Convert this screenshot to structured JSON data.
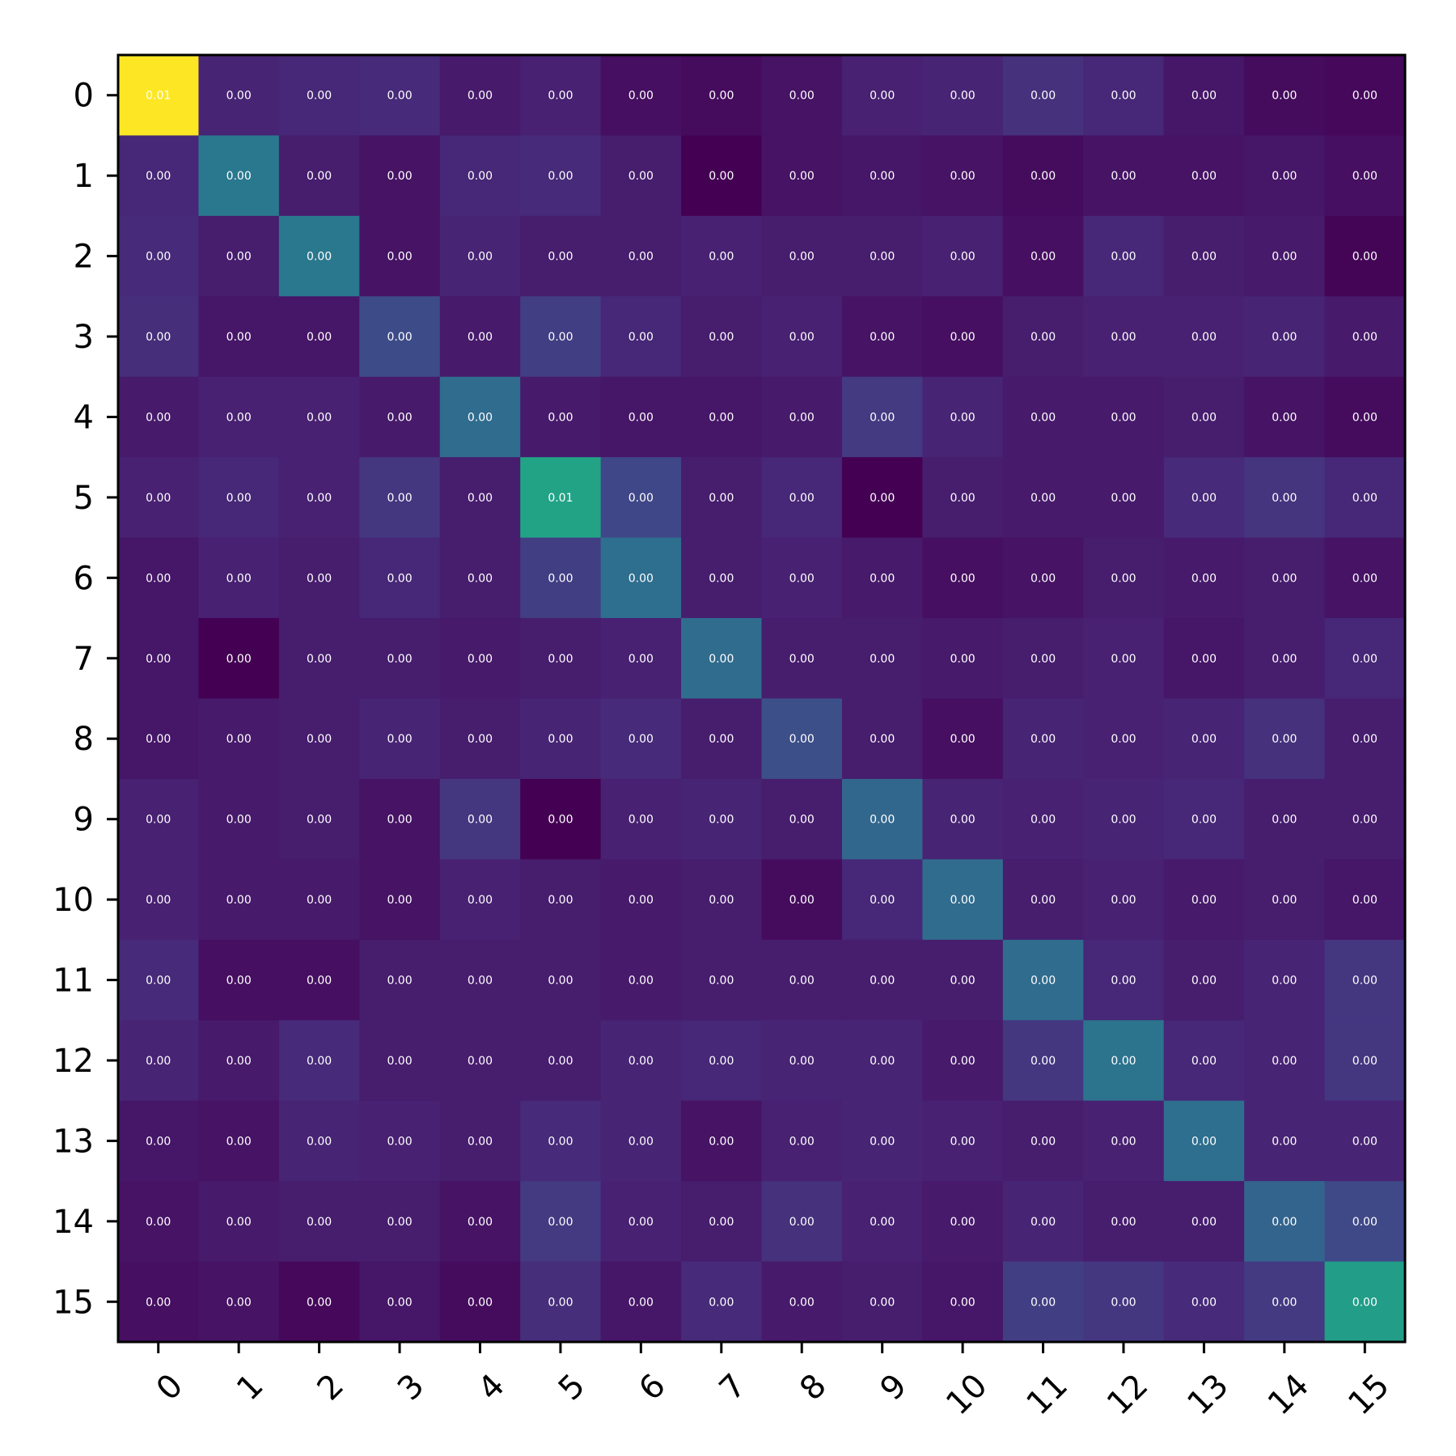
{
  "chart_data": {
    "type": "heatmap",
    "title": "",
    "xlabel": "",
    "ylabel": "",
    "x_ticks": [
      "0",
      "1",
      "2",
      "3",
      "4",
      "5",
      "6",
      "7",
      "8",
      "9",
      "10",
      "11",
      "12",
      "13",
      "14",
      "15"
    ],
    "y_ticks": [
      "0",
      "1",
      "2",
      "3",
      "4",
      "5",
      "6",
      "7",
      "8",
      "9",
      "10",
      "11",
      "12",
      "13",
      "14",
      "15"
    ],
    "colormap": "viridis",
    "value_range": [
      0,
      1
    ],
    "cell_labels": [
      [
        "0.01",
        "0.00",
        "0.00",
        "0.00",
        "0.00",
        "0.00",
        "0.00",
        "0.00",
        "0.00",
        "0.00",
        "0.00",
        "0.00",
        "0.00",
        "0.00",
        "0.00",
        "0.00"
      ],
      [
        "0.00",
        "0.00",
        "0.00",
        "0.00",
        "0.00",
        "0.00",
        "0.00",
        "0.00",
        "0.00",
        "0.00",
        "0.00",
        "0.00",
        "0.00",
        "0.00",
        "0.00",
        "0.00"
      ],
      [
        "0.00",
        "0.00",
        "0.00",
        "0.00",
        "0.00",
        "0.00",
        "0.00",
        "0.00",
        "0.00",
        "0.00",
        "0.00",
        "0.00",
        "0.00",
        "0.00",
        "0.00",
        "0.00"
      ],
      [
        "0.00",
        "0.00",
        "0.00",
        "0.00",
        "0.00",
        "0.00",
        "0.00",
        "0.00",
        "0.00",
        "0.00",
        "0.00",
        "0.00",
        "0.00",
        "0.00",
        "0.00",
        "0.00"
      ],
      [
        "0.00",
        "0.00",
        "0.00",
        "0.00",
        "0.00",
        "0.00",
        "0.00",
        "0.00",
        "0.00",
        "0.00",
        "0.00",
        "0.00",
        "0.00",
        "0.00",
        "0.00",
        "0.00"
      ],
      [
        "0.00",
        "0.00",
        "0.00",
        "0.00",
        "0.00",
        "0.01",
        "0.00",
        "0.00",
        "0.00",
        "0.00",
        "0.00",
        "0.00",
        "0.00",
        "0.00",
        "0.00",
        "0.00"
      ],
      [
        "0.00",
        "0.00",
        "0.00",
        "0.00",
        "0.00",
        "0.00",
        "0.00",
        "0.00",
        "0.00",
        "0.00",
        "0.00",
        "0.00",
        "0.00",
        "0.00",
        "0.00",
        "0.00"
      ],
      [
        "0.00",
        "0.00",
        "0.00",
        "0.00",
        "0.00",
        "0.00",
        "0.00",
        "0.00",
        "0.00",
        "0.00",
        "0.00",
        "0.00",
        "0.00",
        "0.00",
        "0.00",
        "0.00"
      ],
      [
        "0.00",
        "0.00",
        "0.00",
        "0.00",
        "0.00",
        "0.00",
        "0.00",
        "0.00",
        "0.00",
        "0.00",
        "0.00",
        "0.00",
        "0.00",
        "0.00",
        "0.00",
        "0.00"
      ],
      [
        "0.00",
        "0.00",
        "0.00",
        "0.00",
        "0.00",
        "0.00",
        "0.00",
        "0.00",
        "0.00",
        "0.00",
        "0.00",
        "0.00",
        "0.00",
        "0.00",
        "0.00",
        "0.00"
      ],
      [
        "0.00",
        "0.00",
        "0.00",
        "0.00",
        "0.00",
        "0.00",
        "0.00",
        "0.00",
        "0.00",
        "0.00",
        "0.00",
        "0.00",
        "0.00",
        "0.00",
        "0.00",
        "0.00"
      ],
      [
        "0.00",
        "0.00",
        "0.00",
        "0.00",
        "0.00",
        "0.00",
        "0.00",
        "0.00",
        "0.00",
        "0.00",
        "0.00",
        "0.00",
        "0.00",
        "0.00",
        "0.00",
        "0.00"
      ],
      [
        "0.00",
        "0.00",
        "0.00",
        "0.00",
        "0.00",
        "0.00",
        "0.00",
        "0.00",
        "0.00",
        "0.00",
        "0.00",
        "0.00",
        "0.00",
        "0.00",
        "0.00",
        "0.00"
      ],
      [
        "0.00",
        "0.00",
        "0.00",
        "0.00",
        "0.00",
        "0.00",
        "0.00",
        "0.00",
        "0.00",
        "0.00",
        "0.00",
        "0.00",
        "0.00",
        "0.00",
        "0.00",
        "0.00"
      ],
      [
        "0.00",
        "0.00",
        "0.00",
        "0.00",
        "0.00",
        "0.00",
        "0.00",
        "0.00",
        "0.00",
        "0.00",
        "0.00",
        "0.00",
        "0.00",
        "0.00",
        "0.00",
        "0.00"
      ],
      [
        "0.00",
        "0.00",
        "0.00",
        "0.00",
        "0.00",
        "0.00",
        "0.00",
        "0.00",
        "0.00",
        "0.00",
        "0.00",
        "0.00",
        "0.00",
        "0.00",
        "0.00",
        "0.00"
      ]
    ],
    "intensity": [
      [
        1.0,
        0.1,
        0.11,
        0.12,
        0.07,
        0.09,
        0.04,
        0.03,
        0.05,
        0.09,
        0.1,
        0.14,
        0.11,
        0.06,
        0.03,
        0.02
      ],
      [
        0.11,
        0.4,
        0.08,
        0.05,
        0.11,
        0.12,
        0.08,
        0.0,
        0.05,
        0.06,
        0.05,
        0.03,
        0.05,
        0.05,
        0.06,
        0.04
      ],
      [
        0.12,
        0.08,
        0.4,
        0.05,
        0.1,
        0.08,
        0.08,
        0.09,
        0.08,
        0.08,
        0.09,
        0.04,
        0.11,
        0.08,
        0.07,
        0.01
      ],
      [
        0.13,
        0.06,
        0.06,
        0.23,
        0.07,
        0.18,
        0.11,
        0.08,
        0.09,
        0.05,
        0.04,
        0.08,
        0.09,
        0.09,
        0.1,
        0.07
      ],
      [
        0.07,
        0.09,
        0.09,
        0.07,
        0.35,
        0.07,
        0.06,
        0.06,
        0.07,
        0.17,
        0.1,
        0.07,
        0.07,
        0.08,
        0.05,
        0.03
      ],
      [
        0.09,
        0.11,
        0.09,
        0.16,
        0.08,
        0.58,
        0.21,
        0.08,
        0.11,
        0.0,
        0.08,
        0.07,
        0.07,
        0.12,
        0.15,
        0.11
      ],
      [
        0.06,
        0.09,
        0.08,
        0.11,
        0.08,
        0.18,
        0.36,
        0.08,
        0.09,
        0.07,
        0.04,
        0.05,
        0.08,
        0.07,
        0.08,
        0.05
      ],
      [
        0.06,
        0.0,
        0.08,
        0.08,
        0.07,
        0.08,
        0.09,
        0.35,
        0.08,
        0.08,
        0.07,
        0.08,
        0.09,
        0.06,
        0.08,
        0.11
      ],
      [
        0.06,
        0.07,
        0.08,
        0.1,
        0.08,
        0.1,
        0.12,
        0.08,
        0.24,
        0.08,
        0.04,
        0.1,
        0.09,
        0.1,
        0.14,
        0.08
      ],
      [
        0.09,
        0.07,
        0.08,
        0.05,
        0.16,
        0.0,
        0.09,
        0.1,
        0.08,
        0.33,
        0.1,
        0.09,
        0.1,
        0.11,
        0.08,
        0.08
      ],
      [
        0.09,
        0.07,
        0.07,
        0.05,
        0.09,
        0.08,
        0.07,
        0.08,
        0.03,
        0.11,
        0.35,
        0.08,
        0.09,
        0.07,
        0.08,
        0.06
      ],
      [
        0.12,
        0.04,
        0.04,
        0.08,
        0.08,
        0.08,
        0.07,
        0.08,
        0.08,
        0.08,
        0.08,
        0.35,
        0.11,
        0.08,
        0.1,
        0.16
      ],
      [
        0.1,
        0.07,
        0.12,
        0.08,
        0.08,
        0.08,
        0.1,
        0.11,
        0.1,
        0.1,
        0.07,
        0.16,
        0.38,
        0.11,
        0.1,
        0.16
      ],
      [
        0.06,
        0.05,
        0.1,
        0.09,
        0.08,
        0.12,
        0.1,
        0.05,
        0.09,
        0.1,
        0.09,
        0.08,
        0.09,
        0.36,
        0.1,
        0.1
      ],
      [
        0.05,
        0.07,
        0.08,
        0.08,
        0.05,
        0.17,
        0.09,
        0.08,
        0.14,
        0.09,
        0.07,
        0.1,
        0.08,
        0.08,
        0.32,
        0.22
      ],
      [
        0.04,
        0.05,
        0.02,
        0.06,
        0.03,
        0.13,
        0.06,
        0.12,
        0.07,
        0.08,
        0.06,
        0.18,
        0.16,
        0.12,
        0.17,
        0.55
      ]
    ]
  }
}
